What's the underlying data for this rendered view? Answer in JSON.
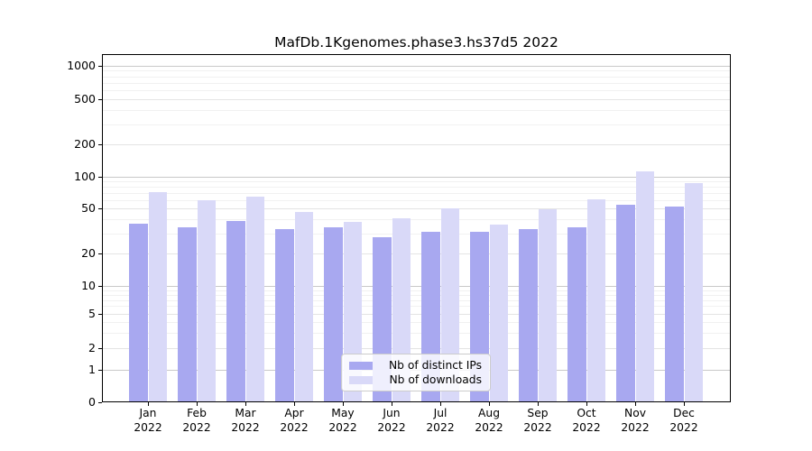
{
  "title": "MafDb.1Kgenomes.phase3.hs37d5 2022",
  "chart_data": {
    "type": "bar",
    "title": "MafDb.1Kgenomes.phase3.hs37d5 2022",
    "categories": [
      "Jan 2022",
      "Feb 2022",
      "Mar 2022",
      "Apr 2022",
      "May 2022",
      "Jun 2022",
      "Jul 2022",
      "Aug 2022",
      "Sep 2022",
      "Oct 2022",
      "Nov 2022",
      "Dec 2022"
    ],
    "series": [
      {
        "name": "Nb of distinct IPs",
        "color": "#a8a8f0",
        "values": [
          37,
          34,
          39,
          33,
          34,
          28,
          31,
          31,
          33,
          34,
          54,
          52
        ]
      },
      {
        "name": "Nb of downloads",
        "color": "#d9d9f8",
        "values": [
          72,
          60,
          65,
          47,
          38,
          41,
          50,
          36,
          49,
          61,
          113,
          88
        ]
      }
    ],
    "yticks": [
      0,
      1,
      2,
      5,
      10,
      20,
      50,
      100,
      200,
      500,
      1000
    ],
    "ylim": [
      0,
      1400
    ],
    "yscale": "symlog",
    "xlabel": "",
    "ylabel": "",
    "grid": true,
    "legend_position": "lower center"
  },
  "legend": {
    "items": [
      {
        "label": "Nb of distinct IPs",
        "swatch": "#a8a8f0"
      },
      {
        "label": "Nb of downloads",
        "swatch": "#d9d9f8"
      }
    ]
  },
  "colors": {
    "distinct_ips": "#a8a8f0",
    "downloads": "#d9d9f8",
    "grid_major": "#c9c9c9",
    "grid_labeled": "#e4e4e4",
    "grid_minor": "#f1f1f1",
    "frame": "#000000",
    "legend_border": "#cccccc"
  }
}
